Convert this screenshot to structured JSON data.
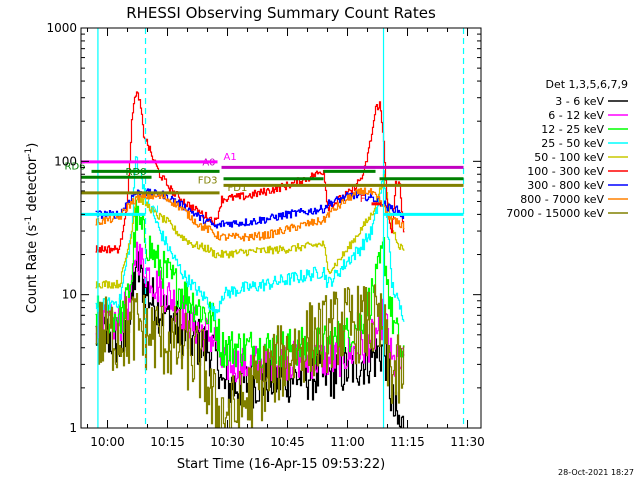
{
  "chart_data": {
    "type": "line",
    "title": "RHESSI Observing Summary Count Rates",
    "xlabel": "Start Time (16-Apr-15 09:53:22)",
    "ylabel": "Count Rate (s",
    "ylabel_sup": "-1",
    "ylabel_rest": " detector",
    "ylabel_end": ")",
    "x_ticks": [
      "10:00",
      "10:15",
      "10:30",
      "10:45",
      "11:00",
      "11:15",
      "11:30"
    ],
    "x_tick_minutes": [
      600,
      615,
      630,
      645,
      660,
      675,
      690
    ],
    "x_range_minutes": [
      593.37,
      693.37
    ],
    "y_scale": "log",
    "y_ticks": [
      "1",
      "10",
      "100",
      "1000"
    ],
    "y_tick_values": [
      1,
      10,
      100,
      1000
    ],
    "ylim": [
      1,
      1000
    ],
    "grid": false,
    "legend_title": "Det 1,3,5,6,7,9",
    "legend_position": "right",
    "series": [
      {
        "name": "3 - 6 keV",
        "color": "#000000",
        "points": [
          [
            597,
            5
          ],
          [
            600,
            5
          ],
          [
            604,
            4
          ],
          [
            606,
            8
          ],
          [
            607,
            17
          ],
          [
            609,
            12
          ],
          [
            611,
            9
          ],
          [
            613,
            8
          ],
          [
            615,
            7
          ],
          [
            617,
            6
          ],
          [
            619,
            5
          ],
          [
            622,
            4.5
          ],
          [
            625,
            4
          ],
          [
            627,
            3.5
          ],
          [
            628,
            3
          ],
          [
            628.5,
            2
          ],
          [
            630,
            2
          ],
          [
            635,
            2.2
          ],
          [
            640,
            2.3
          ],
          [
            645,
            2.4
          ],
          [
            650,
            2.5
          ],
          [
            654,
            2.5
          ],
          [
            655,
            2.5
          ],
          [
            660,
            2.8
          ],
          [
            664,
            3.2
          ],
          [
            667,
            3.5
          ],
          [
            669,
            4
          ],
          [
            670,
            3
          ],
          [
            671,
            1.5
          ],
          [
            672,
            1.2
          ],
          [
            673,
            1
          ],
          [
            674,
            1
          ]
        ],
        "noise": 0.2
      },
      {
        "name": "6 - 12 keV",
        "color": "#ff00ff",
        "points": [
          [
            597,
            6
          ],
          [
            603,
            6
          ],
          [
            606,
            10
          ],
          [
            607,
            22
          ],
          [
            609,
            16
          ],
          [
            612,
            12
          ],
          [
            615,
            10
          ],
          [
            618,
            8
          ],
          [
            621,
            6
          ],
          [
            625,
            5
          ],
          [
            627,
            4.5
          ],
          [
            628.5,
            3
          ],
          [
            635,
            3
          ],
          [
            645,
            3.2
          ],
          [
            654,
            3.3
          ],
          [
            656,
            3.2
          ],
          [
            660,
            3.6
          ],
          [
            664,
            4
          ],
          [
            667,
            5
          ],
          [
            669,
            7
          ],
          [
            670,
            5
          ],
          [
            671,
            3
          ],
          [
            673,
            3
          ],
          [
            674,
            3
          ]
        ],
        "noise": 0.15
      },
      {
        "name": "12 - 25 keV",
        "color": "#00ff00",
        "points": [
          [
            597,
            7
          ],
          [
            604,
            7
          ],
          [
            606,
            14
          ],
          [
            607,
            38
          ],
          [
            609,
            28
          ],
          [
            612,
            18
          ],
          [
            615,
            14
          ],
          [
            618,
            11
          ],
          [
            621,
            9
          ],
          [
            625,
            7
          ],
          [
            627,
            6
          ],
          [
            628.5,
            4
          ],
          [
            635,
            4
          ],
          [
            645,
            4
          ],
          [
            654,
            4.2
          ],
          [
            656,
            4.5
          ],
          [
            660,
            5
          ],
          [
            664,
            7
          ],
          [
            667,
            12
          ],
          [
            669,
            22
          ],
          [
            670,
            12
          ],
          [
            671,
            7
          ],
          [
            673,
            4
          ],
          [
            674,
            3
          ]
        ],
        "noise": 0.15
      },
      {
        "name": "25 - 50 keV",
        "color": "#00ffff",
        "points": [
          [
            597,
            8
          ],
          [
            603,
            9
          ],
          [
            606,
            30
          ],
          [
            607,
            110
          ],
          [
            608,
            85
          ],
          [
            610,
            50
          ],
          [
            613,
            30
          ],
          [
            616,
            20
          ],
          [
            619,
            14
          ],
          [
            622,
            11
          ],
          [
            625,
            9
          ],
          [
            627,
            7
          ],
          [
            628.5,
            10
          ],
          [
            633,
            11
          ],
          [
            640,
            12
          ],
          [
            645,
            13
          ],
          [
            650,
            14
          ],
          [
            654,
            15
          ],
          [
            655,
            12
          ],
          [
            657,
            14
          ],
          [
            660,
            18
          ],
          [
            663,
            22
          ],
          [
            666,
            30
          ],
          [
            668,
            55
          ],
          [
            669,
            80
          ],
          [
            670,
            30
          ],
          [
            671,
            12
          ],
          [
            673,
            8
          ],
          [
            674,
            7
          ]
        ],
        "noise": 0.05
      },
      {
        "name": "50 - 100 keV",
        "color": "#c8c800",
        "points": [
          [
            597,
            12
          ],
          [
            603,
            12
          ],
          [
            606,
            30
          ],
          [
            607,
            55
          ],
          [
            609,
            50
          ],
          [
            612,
            40
          ],
          [
            615,
            35
          ],
          [
            618,
            28
          ],
          [
            621,
            24
          ],
          [
            625,
            22
          ],
          [
            627,
            20
          ],
          [
            628.5,
            20
          ],
          [
            635,
            21
          ],
          [
            645,
            22
          ],
          [
            654,
            24
          ],
          [
            655,
            15
          ],
          [
            657,
            17
          ],
          [
            660,
            22
          ],
          [
            663,
            30
          ],
          [
            666,
            40
          ],
          [
            668,
            60
          ],
          [
            669,
            75
          ],
          [
            670,
            50
          ],
          [
            671,
            32
          ],
          [
            673,
            23
          ],
          [
            674,
            22
          ]
        ],
        "noise": 0.03
      },
      {
        "name": "100 - 300 keV",
        "color": "#ff0000",
        "points": [
          [
            597,
            22
          ],
          [
            603,
            22
          ],
          [
            605,
            55
          ],
          [
            606,
            200
          ],
          [
            607,
            330
          ],
          [
            608,
            280
          ],
          [
            609,
            160
          ],
          [
            611,
            110
          ],
          [
            613,
            80
          ],
          [
            616,
            60
          ],
          [
            619,
            50
          ],
          [
            622,
            43
          ],
          [
            625,
            38
          ],
          [
            627,
            35
          ],
          [
            628.5,
            52
          ],
          [
            635,
            55
          ],
          [
            640,
            60
          ],
          [
            645,
            66
          ],
          [
            650,
            75
          ],
          [
            654,
            85
          ],
          [
            655,
            45
          ],
          [
            658,
            52
          ],
          [
            661,
            60
          ],
          [
            664,
            80
          ],
          [
            666,
            160
          ],
          [
            667,
            250
          ],
          [
            668,
            270
          ],
          [
            669,
            140
          ],
          [
            670,
            40
          ],
          [
            671,
            28
          ],
          [
            672,
            70
          ],
          [
            673,
            65
          ],
          [
            674,
            30
          ]
        ],
        "noise": 0.03
      },
      {
        "name": "300 - 800 keV",
        "color": "#0000ff",
        "points": [
          [
            597,
            40
          ],
          [
            603,
            40
          ],
          [
            605,
            50
          ],
          [
            607,
            58
          ],
          [
            610,
            58
          ],
          [
            614,
            56
          ],
          [
            617,
            50
          ],
          [
            620,
            44
          ],
          [
            623,
            38
          ],
          [
            626,
            34
          ],
          [
            627,
            32
          ],
          [
            628.5,
            34
          ],
          [
            635,
            35
          ],
          [
            640,
            37
          ],
          [
            645,
            40
          ],
          [
            650,
            42
          ],
          [
            654,
            44
          ],
          [
            655,
            48
          ],
          [
            658,
            52
          ],
          [
            661,
            56
          ],
          [
            664,
            55
          ],
          [
            667,
            52
          ],
          [
            669,
            48
          ],
          [
            670,
            45
          ],
          [
            672,
            44
          ],
          [
            674,
            38
          ]
        ],
        "noise": 0.03
      },
      {
        "name": "800 - 7000 keV",
        "color": "#ff8000",
        "points": [
          [
            597,
            35
          ],
          [
            603,
            38
          ],
          [
            605,
            46
          ],
          [
            607,
            52
          ],
          [
            610,
            55
          ],
          [
            614,
            54
          ],
          [
            617,
            48
          ],
          [
            620,
            40
          ],
          [
            623,
            33
          ],
          [
            626,
            30
          ],
          [
            627,
            28
          ],
          [
            628.5,
            27
          ],
          [
            635,
            27
          ],
          [
            640,
            28
          ],
          [
            645,
            31
          ],
          [
            650,
            34
          ],
          [
            654,
            36
          ],
          [
            655,
            40
          ],
          [
            658,
            47
          ],
          [
            661,
            55
          ],
          [
            664,
            60
          ],
          [
            666,
            58
          ],
          [
            668,
            50
          ],
          [
            670,
            40
          ],
          [
            672,
            35
          ],
          [
            674,
            33
          ]
        ],
        "noise": 0.03
      },
      {
        "name": "7000 - 15000 keV",
        "color": "#808000",
        "points": [
          [
            597,
            5
          ],
          [
            603,
            5
          ],
          [
            606,
            5.5
          ],
          [
            608,
            6
          ],
          [
            610,
            5
          ],
          [
            612,
            5
          ],
          [
            615,
            4.5
          ],
          [
            618,
            4
          ],
          [
            621,
            3.5
          ],
          [
            624,
            2.8
          ],
          [
            626,
            1.5
          ],
          [
            628.5,
            1.3
          ],
          [
            632,
            1.3
          ],
          [
            636,
            1.8
          ],
          [
            640,
            2.5
          ],
          [
            645,
            3.5
          ],
          [
            650,
            4.5
          ],
          [
            654,
            5
          ],
          [
            656,
            5.5
          ],
          [
            660,
            6
          ],
          [
            664,
            6
          ],
          [
            667,
            6
          ],
          [
            669,
            5
          ],
          [
            670,
            3
          ],
          [
            672,
            2.5
          ],
          [
            674,
            2.5
          ]
        ],
        "noise": 0.3
      }
    ],
    "vertical_lines": [
      {
        "minute": 597.6,
        "color": "#00ffff",
        "dashed": false
      },
      {
        "minute": 609.5,
        "color": "#00ffff",
        "dashed": true
      },
      {
        "minute": 669.0,
        "color": "#00ffff",
        "dashed": false
      },
      {
        "minute": 689.0,
        "color": "#00ffff",
        "dashed": true
      }
    ],
    "annotation_bars": [
      {
        "label": "N",
        "color": "#00ffff",
        "level": 40,
        "ranges": [
          [
            593.4,
            609.5
          ],
          [
            669.0,
            689.0
          ]
        ],
        "label_at": 611.0,
        "label_side": "right"
      },
      {
        "label": "F",
        "color": "#ff0000",
        "level": 48,
        "ranges": [
          [
            666.0,
            668.5
          ]
        ],
        "label_at": 664.5,
        "label_side": "left"
      },
      {
        "label": "FD1",
        "color": "#808000",
        "level": 58,
        "ranges": [
          [
            593.4,
            628.0
          ]
        ],
        "label_at": 630.0,
        "label_side": "right"
      },
      {
        "label": "FD3",
        "color": "#808000",
        "level": 66,
        "ranges": [
          [
            629.0,
            689.0
          ]
        ],
        "label_at": 627.5,
        "label_side": "left"
      },
      {
        "label": "",
        "color": "#008000",
        "level": 74,
        "ranges": [
          [
            629.0,
            654.0
          ],
          [
            668.0,
            689.0
          ]
        ],
        "label_at": 0,
        "label_side": "none"
      },
      {
        "label": "RD0",
        "color": "#008000",
        "level": 76,
        "ranges": [
          [
            593.4,
            611.0
          ]
        ],
        "label_at": 604.5,
        "label_side": "right"
      },
      {
        "label": "RD6",
        "color": "#008000",
        "level": 84,
        "ranges": [
          [
            596.0,
            628.0
          ],
          [
            654.0,
            667.0
          ]
        ],
        "label_at": 594.5,
        "label_side": "left"
      },
      {
        "label": "A0",
        "color": "#c000c0",
        "level": 90,
        "ranges": [
          [
            628.5,
            689.0
          ]
        ],
        "label_at": 627.0,
        "label_side": "left"
      },
      {
        "label": "A1",
        "color": "#ff00ff",
        "level": 99,
        "ranges": [
          [
            593.4,
            627.5
          ]
        ],
        "label_at": 629.0,
        "label_side": "right"
      }
    ],
    "footer_timestamp": "28-Oct-2021 18:27"
  }
}
